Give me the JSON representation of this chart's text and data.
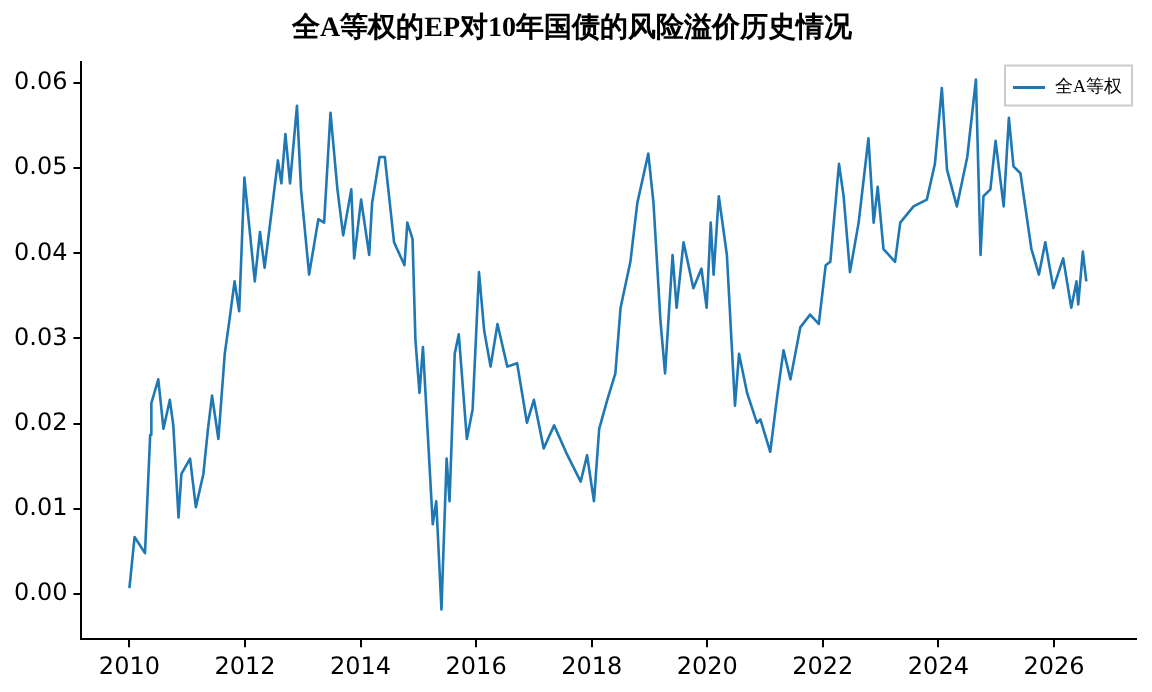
{
  "chart_data": {
    "type": "line",
    "title": "全A等权的EP对10年国债的风险溢价历史情况",
    "legend": "top right",
    "grid": false,
    "marker": "none",
    "line_style": "solid",
    "xlim": [
      2009.17,
      2027.42
    ],
    "xticks": [
      2010,
      2012,
      2014,
      2016,
      2018,
      2020,
      2022,
      2024,
      2026
    ],
    "ylim": [
      -0.0053,
      0.0625
    ],
    "yticks": [
      {
        "value": 0,
        "label": "0.00"
      },
      {
        "value": 0.01,
        "label": "0.01"
      },
      {
        "value": 0.02,
        "label": "0.02"
      },
      {
        "value": 0.03,
        "label": "0.03"
      },
      {
        "value": 0.04,
        "label": "0.04"
      },
      {
        "value": 0.05,
        "label": "0.05"
      },
      {
        "value": 0.06,
        "label": "0.06"
      }
    ],
    "series": [
      {
        "name": "全A等权",
        "color": "#1f77b4",
        "x": [
          2010.0,
          2010.09,
          2010.27,
          2010.36,
          2010.38,
          2010.5,
          2010.59,
          2010.7,
          2010.76,
          2010.85,
          2010.9,
          2011.05,
          2011.15,
          2011.28,
          2011.36,
          2011.43,
          2011.54,
          2011.65,
          2011.73,
          2011.82,
          2011.9,
          2011.99,
          2012.05,
          2012.17,
          2012.26,
          2012.34,
          2012.43,
          2012.57,
          2012.63,
          2012.7,
          2012.78,
          2012.9,
          2012.97,
          2013.11,
          2013.27,
          2013.37,
          2013.48,
          2013.6,
          2013.7,
          2013.84,
          2013.89,
          2014.01,
          2014.15,
          2014.2,
          2014.33,
          2014.42,
          2014.58,
          2014.76,
          2014.81,
          2014.9,
          2014.95,
          2015.02,
          2015.08,
          2015.25,
          2015.31,
          2015.4,
          2015.49,
          2015.54,
          2015.63,
          2015.7,
          2015.84,
          2015.94,
          2016.05,
          2016.14,
          2016.25,
          2016.37,
          2016.54,
          2016.71,
          2016.88,
          2017.0,
          2017.17,
          2017.35,
          2017.58,
          2017.81,
          2017.92,
          2018.04,
          2018.13,
          2018.27,
          2018.41,
          2018.5,
          2018.67,
          2018.79,
          2018.98,
          2019.07,
          2019.19,
          2019.27,
          2019.4,
          2019.47,
          2019.59,
          2019.76,
          2019.9,
          2019.99,
          2020.06,
          2020.11,
          2020.2,
          2020.34,
          2020.48,
          2020.55,
          2020.69,
          2020.86,
          2020.92,
          2021.09,
          2021.21,
          2021.32,
          2021.44,
          2021.61,
          2021.78,
          2021.93,
          2022.05,
          2022.13,
          2022.28,
          2022.36,
          2022.47,
          2022.62,
          2022.79,
          2022.88,
          2022.95,
          2023.05,
          2023.25,
          2023.34,
          2023.57,
          2023.8,
          2023.94,
          2024.06,
          2024.15,
          2024.32,
          2024.5,
          2024.65,
          2024.73,
          2024.78,
          2024.9,
          2024.99,
          2025.13,
          2025.22,
          2025.3,
          2025.42,
          2025.61,
          2025.74,
          2025.85,
          2025.99,
          2026.16,
          2026.3,
          2026.39,
          2026.42,
          2026.5,
          2026.56
        ],
        "values": [
          0.0007,
          0.0067,
          0.0048,
          0.0187,
          0.0224,
          0.0252,
          0.0194,
          0.0228,
          0.0198,
          0.009,
          0.0141,
          0.0159,
          0.0102,
          0.0141,
          0.0194,
          0.0233,
          0.0182,
          0.0282,
          0.0321,
          0.0367,
          0.0332,
          0.0489,
          0.0448,
          0.0367,
          0.0425,
          0.0383,
          0.0432,
          0.0509,
          0.0482,
          0.054,
          0.0482,
          0.0573,
          0.0475,
          0.0375,
          0.044,
          0.0436,
          0.0565,
          0.0475,
          0.0421,
          0.0475,
          0.0394,
          0.0463,
          0.0398,
          0.0459,
          0.0513,
          0.0513,
          0.0413,
          0.0386,
          0.0436,
          0.0417,
          0.0298,
          0.0236,
          0.029,
          0.0082,
          0.0109,
          -0.0018,
          0.0159,
          0.0109,
          0.0282,
          0.0305,
          0.0182,
          0.0217,
          0.0378,
          0.0309,
          0.0267,
          0.0317,
          0.0267,
          0.0271,
          0.0201,
          0.0228,
          0.0171,
          0.0198,
          0.0163,
          0.0132,
          0.0163,
          0.0109,
          0.0194,
          0.0228,
          0.0259,
          0.0336,
          0.039,
          0.0459,
          0.0517,
          0.0459,
          0.0321,
          0.0259,
          0.0398,
          0.0336,
          0.0413,
          0.0359,
          0.0382,
          0.0336,
          0.0436,
          0.0375,
          0.0467,
          0.0398,
          0.0221,
          0.0282,
          0.0236,
          0.0201,
          0.0205,
          0.0167,
          0.0232,
          0.0286,
          0.0252,
          0.0313,
          0.0328,
          0.0317,
          0.0386,
          0.039,
          0.0505,
          0.0467,
          0.0378,
          0.0436,
          0.0535,
          0.0436,
          0.0478,
          0.0405,
          0.039,
          0.0436,
          0.0455,
          0.0463,
          0.0505,
          0.0594,
          0.0498,
          0.0455,
          0.0513,
          0.0604,
          0.0398,
          0.0467,
          0.0475,
          0.0532,
          0.0455,
          0.0559,
          0.0502,
          0.0494,
          0.0405,
          0.0375,
          0.0413,
          0.0359,
          0.0394,
          0.0336,
          0.0367,
          0.034,
          0.0402,
          0.0367
        ]
      }
    ]
  }
}
